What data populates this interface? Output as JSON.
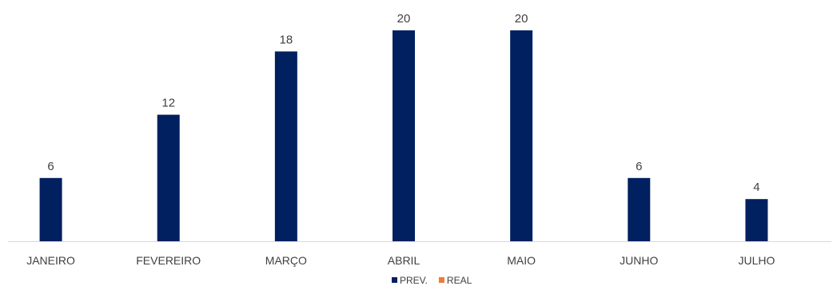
{
  "chart_data": {
    "type": "bar",
    "categories": [
      "JANEIRO",
      "FEVEREIRO",
      "MARÇO",
      "ABRIL",
      "MAIO",
      "JUNHO",
      "JULHO"
    ],
    "series": [
      {
        "name": "PREV.",
        "color": "#002060",
        "values": [
          6,
          12,
          18,
          20,
          20,
          6,
          4
        ]
      },
      {
        "name": "REAL",
        "color": "#ED7D31",
        "values": [
          0,
          0,
          0,
          0,
          0,
          0,
          0
        ]
      }
    ],
    "ylim": [
      0,
      20
    ],
    "data_labels": true,
    "grid": false,
    "legend": "bottom-center",
    "title": "",
    "xlabel": "",
    "ylabel": ""
  }
}
